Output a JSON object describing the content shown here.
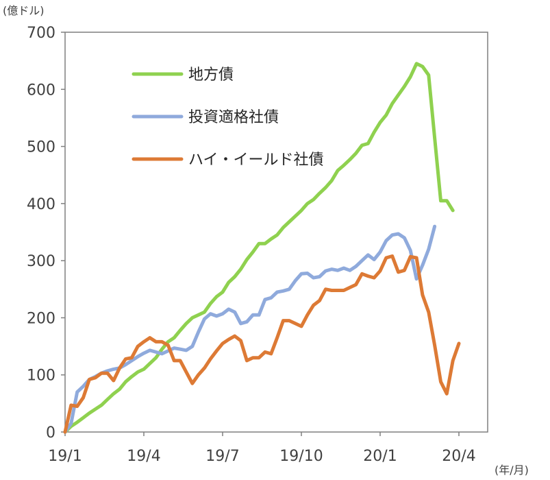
{
  "chart_data": {
    "type": "line",
    "y_unit": "(億ドル)",
    "x_unit": "(年/月)",
    "ylim": [
      0,
      700
    ],
    "y_ticks": [
      0,
      100,
      200,
      300,
      400,
      500,
      600,
      700
    ],
    "x_ticks": [
      {
        "label": "19/1",
        "week": 0
      },
      {
        "label": "19/4",
        "week": 13
      },
      {
        "label": "19/7",
        "week": 26
      },
      {
        "label": "19/10",
        "week": 39
      },
      {
        "label": "20/1",
        "week": 52
      },
      {
        "label": "20/4",
        "week": 65
      }
    ],
    "x_range_weeks": [
      0,
      69
    ],
    "legend_position": "upper-left",
    "series": [
      {
        "name": "地方債",
        "color": "#8fd14f",
        "points": [
          [
            0,
            0
          ],
          [
            1,
            10
          ],
          [
            2,
            17
          ],
          [
            3,
            25
          ],
          [
            4,
            33
          ],
          [
            5,
            40
          ],
          [
            6,
            47
          ],
          [
            7,
            57
          ],
          [
            8,
            67
          ],
          [
            9,
            75
          ],
          [
            10,
            88
          ],
          [
            11,
            97
          ],
          [
            12,
            105
          ],
          [
            13,
            110
          ],
          [
            14,
            120
          ],
          [
            15,
            130
          ],
          [
            16,
            145
          ],
          [
            17,
            158
          ],
          [
            18,
            165
          ],
          [
            19,
            178
          ],
          [
            20,
            190
          ],
          [
            21,
            200
          ],
          [
            22,
            205
          ],
          [
            23,
            210
          ],
          [
            24,
            225
          ],
          [
            25,
            237
          ],
          [
            26,
            245
          ],
          [
            27,
            262
          ],
          [
            28,
            272
          ],
          [
            29,
            285
          ],
          [
            30,
            302
          ],
          [
            31,
            315
          ],
          [
            32,
            330
          ],
          [
            33,
            330
          ],
          [
            34,
            338
          ],
          [
            35,
            345
          ],
          [
            36,
            358
          ],
          [
            37,
            368
          ],
          [
            38,
            378
          ],
          [
            39,
            388
          ],
          [
            40,
            400
          ],
          [
            41,
            407
          ],
          [
            42,
            418
          ],
          [
            43,
            428
          ],
          [
            44,
            440
          ],
          [
            45,
            458
          ],
          [
            46,
            467
          ],
          [
            47,
            477
          ],
          [
            48,
            488
          ],
          [
            49,
            502
          ],
          [
            50,
            505
          ],
          [
            51,
            525
          ],
          [
            52,
            542
          ],
          [
            53,
            555
          ],
          [
            54,
            575
          ],
          [
            55,
            590
          ],
          [
            56,
            605
          ],
          [
            57,
            622
          ],
          [
            58,
            645
          ],
          [
            59,
            640
          ],
          [
            60,
            625
          ],
          [
            61,
            515
          ],
          [
            62,
            405
          ],
          [
            63,
            405
          ],
          [
            64,
            388
          ]
        ]
      },
      {
        "name": "投資適格社債",
        "color": "#8faadc",
        "points": [
          [
            0,
            0
          ],
          [
            1,
            15
          ],
          [
            2,
            70
          ],
          [
            3,
            80
          ],
          [
            4,
            92
          ],
          [
            5,
            97
          ],
          [
            6,
            103
          ],
          [
            7,
            107
          ],
          [
            8,
            110
          ],
          [
            9,
            112
          ],
          [
            10,
            118
          ],
          [
            11,
            125
          ],
          [
            12,
            132
          ],
          [
            13,
            138
          ],
          [
            14,
            143
          ],
          [
            15,
            140
          ],
          [
            16,
            137
          ],
          [
            17,
            142
          ],
          [
            18,
            147
          ],
          [
            19,
            145
          ],
          [
            20,
            143
          ],
          [
            21,
            150
          ],
          [
            22,
            175
          ],
          [
            23,
            198
          ],
          [
            24,
            207
          ],
          [
            25,
            203
          ],
          [
            26,
            207
          ],
          [
            27,
            215
          ],
          [
            28,
            210
          ],
          [
            29,
            190
          ],
          [
            30,
            193
          ],
          [
            31,
            205
          ],
          [
            32,
            205
          ],
          [
            33,
            232
          ],
          [
            34,
            235
          ],
          [
            35,
            245
          ],
          [
            36,
            247
          ],
          [
            37,
            250
          ],
          [
            38,
            265
          ],
          [
            39,
            277
          ],
          [
            40,
            278
          ],
          [
            41,
            270
          ],
          [
            42,
            272
          ],
          [
            43,
            282
          ],
          [
            44,
            285
          ],
          [
            45,
            283
          ],
          [
            46,
            287
          ],
          [
            47,
            283
          ],
          [
            48,
            290
          ],
          [
            49,
            300
          ],
          [
            50,
            310
          ],
          [
            51,
            302
          ],
          [
            52,
            315
          ],
          [
            53,
            335
          ],
          [
            54,
            345
          ],
          [
            55,
            347
          ],
          [
            56,
            340
          ],
          [
            57,
            318
          ],
          [
            58,
            268
          ],
          [
            59,
            292
          ],
          [
            60,
            320
          ],
          [
            61,
            360
          ]
        ]
      },
      {
        "name": "ハイ・イールド社債",
        "color": "#dd7a35",
        "points": [
          [
            0,
            0
          ],
          [
            1,
            47
          ],
          [
            2,
            45
          ],
          [
            3,
            60
          ],
          [
            4,
            92
          ],
          [
            5,
            95
          ],
          [
            6,
            103
          ],
          [
            7,
            103
          ],
          [
            8,
            90
          ],
          [
            9,
            112
          ],
          [
            10,
            128
          ],
          [
            11,
            130
          ],
          [
            12,
            150
          ],
          [
            13,
            158
          ],
          [
            14,
            165
          ],
          [
            15,
            158
          ],
          [
            16,
            158
          ],
          [
            17,
            152
          ],
          [
            18,
            125
          ],
          [
            19,
            125
          ],
          [
            20,
            105
          ],
          [
            21,
            85
          ],
          [
            22,
            100
          ],
          [
            23,
            112
          ],
          [
            24,
            128
          ],
          [
            25,
            142
          ],
          [
            26,
            155
          ],
          [
            27,
            162
          ],
          [
            28,
            168
          ],
          [
            29,
            160
          ],
          [
            30,
            125
          ],
          [
            31,
            130
          ],
          [
            32,
            130
          ],
          [
            33,
            140
          ],
          [
            34,
            137
          ],
          [
            35,
            165
          ],
          [
            36,
            195
          ],
          [
            37,
            195
          ],
          [
            38,
            190
          ],
          [
            39,
            185
          ],
          [
            40,
            205
          ],
          [
            41,
            222
          ],
          [
            42,
            230
          ],
          [
            43,
            250
          ],
          [
            44,
            248
          ],
          [
            45,
            248
          ],
          [
            46,
            248
          ],
          [
            47,
            253
          ],
          [
            48,
            258
          ],
          [
            49,
            277
          ],
          [
            50,
            273
          ],
          [
            51,
            270
          ],
          [
            52,
            282
          ],
          [
            53,
            305
          ],
          [
            54,
            308
          ],
          [
            55,
            280
          ],
          [
            56,
            283
          ],
          [
            57,
            307
          ],
          [
            58,
            305
          ],
          [
            59,
            240
          ],
          [
            60,
            210
          ],
          [
            61,
            152
          ],
          [
            62,
            88
          ],
          [
            63,
            67
          ],
          [
            64,
            125
          ],
          [
            65,
            155
          ]
        ]
      }
    ]
  }
}
